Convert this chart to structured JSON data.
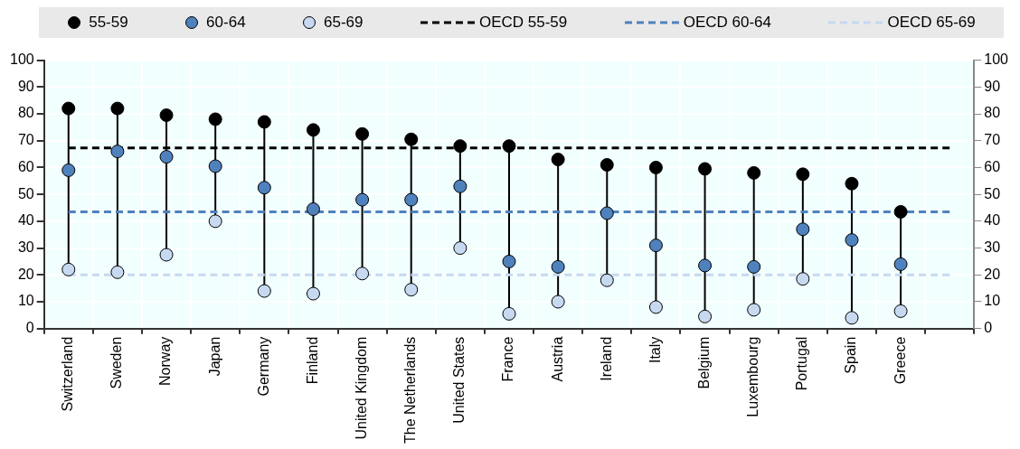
{
  "chart_data": {
    "type": "scatter",
    "categories": [
      "Switzerland",
      "Sweden",
      "Norway",
      "Japan",
      "Germany",
      "Finland",
      "United Kingdom",
      "The Netherlands",
      "United States",
      "France",
      "Austria",
      "Ireland",
      "Italy",
      "Belgium",
      "Luxembourg",
      "Portugal",
      "Spain",
      "Greece",
      null
    ],
    "series": [
      {
        "name": "55-59",
        "type": "scatter",
        "marker": "circle",
        "color": "#000000",
        "values": [
          82,
          82,
          79.5,
          78,
          77,
          74,
          72.5,
          70.5,
          68,
          68,
          63,
          61,
          60,
          59.5,
          58,
          57.5,
          54,
          43.5,
          null
        ]
      },
      {
        "name": "60-64",
        "type": "scatter",
        "marker": "circle",
        "color": "#4f81bd",
        "values": [
          59,
          66,
          64,
          60.5,
          52.5,
          44.5,
          48,
          48,
          53,
          25,
          23,
          43,
          31,
          23.5,
          23,
          37,
          33,
          24,
          null
        ]
      },
      {
        "name": "65-69",
        "type": "scatter",
        "marker": "circle",
        "color": "#c6d9f0",
        "values": [
          22,
          21,
          27.5,
          40,
          14,
          13,
          20.5,
          14.5,
          30,
          5.5,
          10,
          18,
          8,
          4.5,
          7,
          18.5,
          4,
          6.5,
          null
        ]
      },
      {
        "name": "OECD 55-59",
        "type": "line",
        "line_style": "dashed",
        "marker": "none",
        "color": "#000000",
        "values": [
          67.3,
          67.3,
          67.3,
          67.3,
          67.3,
          67.3,
          67.3,
          67.3,
          67.3,
          67.3,
          67.3,
          67.3,
          67.3,
          67.3,
          67.3,
          67.3,
          67.3,
          67.3,
          67.3
        ]
      },
      {
        "name": "OECD 60-64",
        "type": "line",
        "line_style": "dashed",
        "marker": "none",
        "color": "#4f81bd",
        "values": [
          43.5,
          43.5,
          43.5,
          43.5,
          43.5,
          43.5,
          43.5,
          43.5,
          43.5,
          43.5,
          43.5,
          43.5,
          43.5,
          43.5,
          43.5,
          43.5,
          43.5,
          43.5,
          43.5
        ]
      },
      {
        "name": "OECD 65-69",
        "type": "line",
        "line_style": "dashed",
        "marker": "none",
        "color": "#c6d9f0",
        "values": [
          20,
          20,
          20,
          20,
          20,
          20,
          20,
          20,
          20,
          20,
          20,
          20,
          20,
          20,
          20,
          20,
          20,
          20,
          20
        ]
      }
    ],
    "ylim": [
      0,
      100
    ],
    "yticks": [
      0,
      10,
      20,
      30,
      40,
      50,
      60,
      70,
      80,
      90,
      100
    ],
    "y2lim": [
      0,
      100
    ],
    "y2ticks": [
      0,
      10,
      20,
      30,
      40,
      50,
      60,
      70,
      80,
      90,
      100
    ],
    "grid": true,
    "legend": "top"
  }
}
